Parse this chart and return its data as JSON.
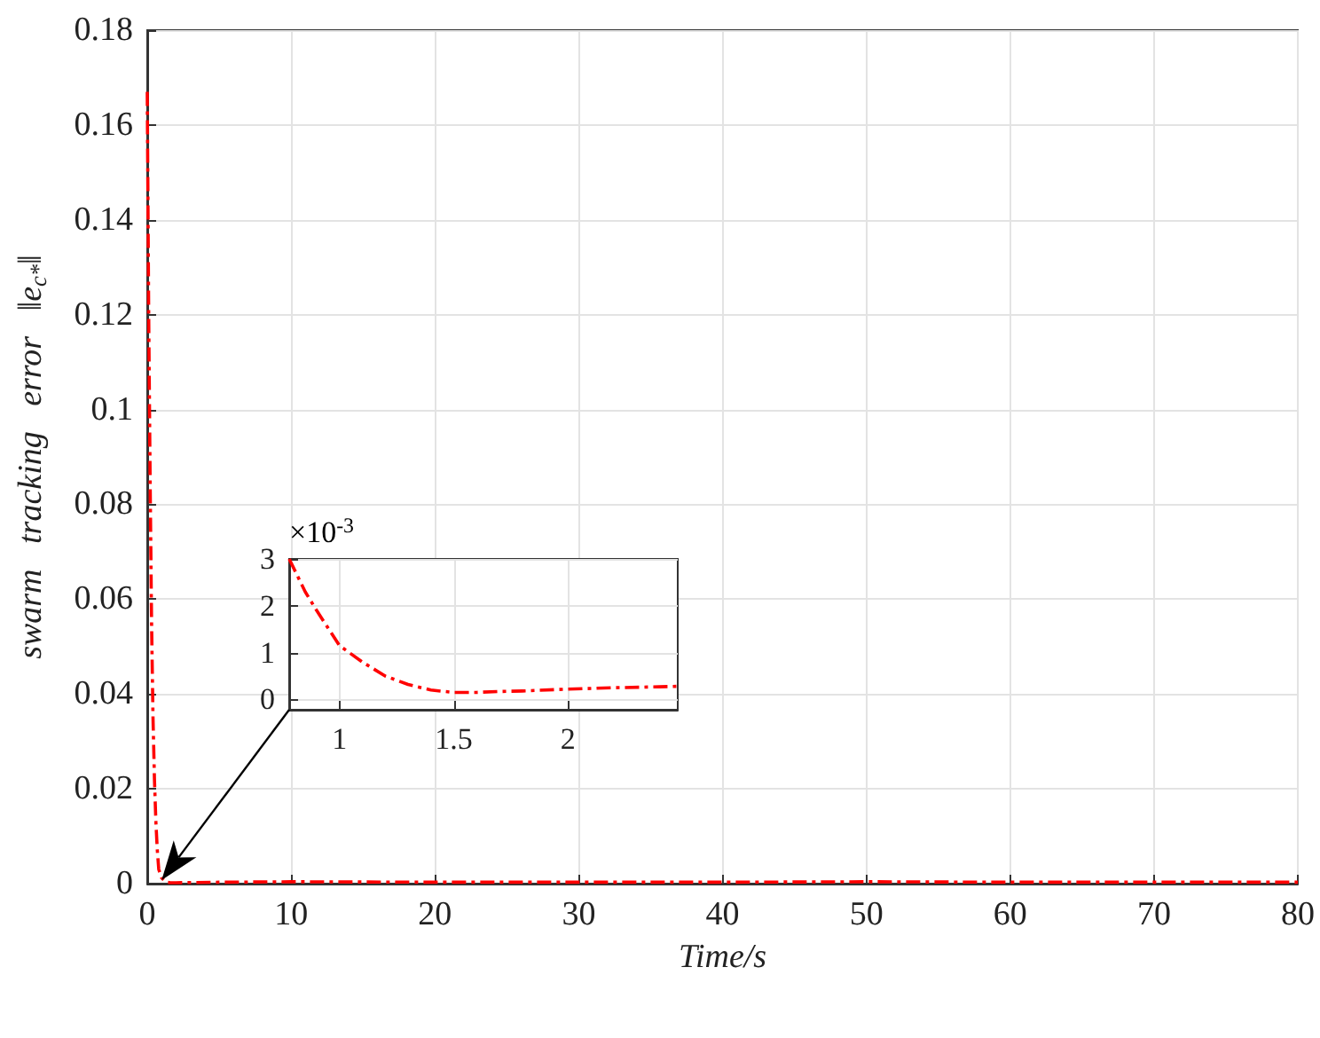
{
  "chart_data": [
    {
      "type": "line",
      "xlabel": "Time/s",
      "ylabel": "swarm   tracking   error   ‖e$_{c*}$‖",
      "x": [
        0,
        0.1,
        0.2,
        0.3,
        0.4,
        0.5,
        0.6,
        0.7,
        0.8,
        1,
        1.3,
        1.6,
        2,
        5,
        10,
        20,
        30,
        40,
        50,
        60,
        70,
        80
      ],
      "series": [
        {
          "color": "#ff0000",
          "values": [
            0.167,
            0.12,
            0.085,
            0.055,
            0.035,
            0.022,
            0.013,
            0.007,
            0.003,
            0.0012,
            0.0003,
            0.0002,
            0.0002,
            0.0003,
            0.0004,
            0.0003,
            0.0003,
            0.0003,
            0.0004,
            0.0003,
            0.0003,
            0.0003
          ]
        }
      ],
      "xlim": [
        0,
        80
      ],
      "xticks": [
        0,
        10,
        20,
        30,
        40,
        50,
        60,
        70,
        80
      ],
      "ylim": [
        0,
        0.18
      ],
      "yticks": [
        0,
        0.02,
        0.04,
        0.06,
        0.08,
        0.1,
        0.12,
        0.14,
        0.16,
        0.18
      ],
      "grid": true,
      "line_style": "dashed",
      "marker": "none"
    },
    {
      "type": "line",
      "annotations": [
        "×10$^{-3}$"
      ],
      "x": [
        0.78,
        0.85,
        0.9,
        1,
        1.1,
        1.2,
        1.3,
        1.4,
        1.5,
        1.6,
        1.7,
        1.8,
        2,
        2.2,
        2.4,
        2.48
      ],
      "series": [
        {
          "color": "#ff0000",
          "values": [
            3,
            2.3,
            1.9,
            1.15,
            0.8,
            0.5,
            0.32,
            0.2,
            0.15,
            0.15,
            0.17,
            0.18,
            0.22,
            0.25,
            0.27,
            0.28
          ]
        }
      ],
      "xlim": [
        0.78,
        2.48
      ],
      "xticks": [
        1,
        1.5,
        2
      ],
      "ylim": [
        -0.22,
        3
      ],
      "yticks": [
        0,
        1,
        2,
        3
      ],
      "grid": true,
      "line_style": "dashed",
      "marker": "none"
    }
  ]
}
